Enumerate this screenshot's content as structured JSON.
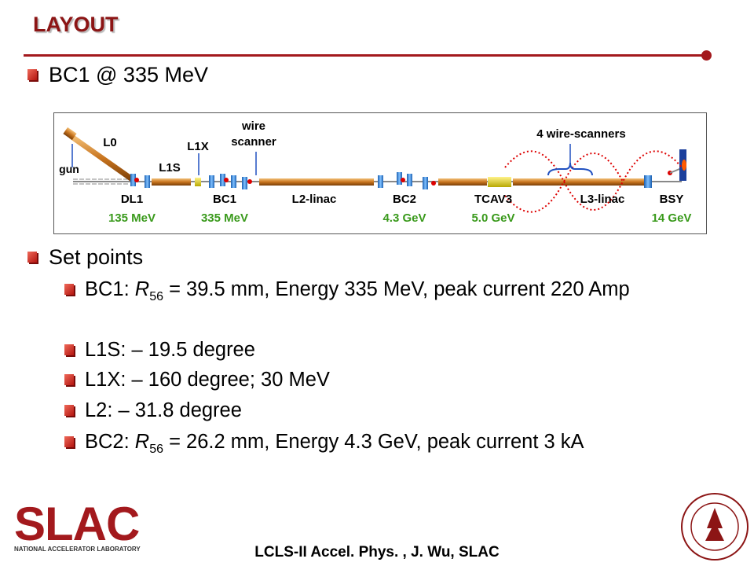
{
  "header": {
    "title": "LAYOUT"
  },
  "body": {
    "bullets": [
      {
        "text": "BC1 @ 335 MeV"
      },
      {
        "text": "Set points",
        "items": [
          {
            "label": "BC1: ",
            "symbol": "R",
            "subscript": "56",
            "text": " = 39.5 mm, Energy 335 MeV, peak current 220 Amp"
          },
          {
            "text": "L1S: – 19.5 degree"
          },
          {
            "text": "L1X: – 160 degree; 30 MeV"
          },
          {
            "text": "L2: – 31.8 degree"
          },
          {
            "label": "BC2: ",
            "symbol": "R",
            "subscript": "56",
            "text": " = 26.2 mm, Energy 4.3 GeV, peak current 3 kA"
          }
        ]
      }
    ]
  },
  "diagram": {
    "gun": "gun",
    "l0": "L0",
    "l1s": "L1S",
    "l1x": "L1X",
    "wire_scanner": [
      "wire",
      "scanner"
    ],
    "wire_scanners": "4 wire-scanners",
    "sections": [
      {
        "name": "DL1",
        "energy": "135 MeV"
      },
      {
        "name": "BC1",
        "energy": "335 MeV"
      },
      {
        "name": "L2-linac"
      },
      {
        "name": "BC2",
        "energy": "4.3 GeV"
      },
      {
        "name": "TCAV3",
        "energy": "5.0 GeV"
      },
      {
        "name": "L3-linac"
      },
      {
        "name": "BSY",
        "energy": "14 GeV"
      }
    ]
  },
  "footer": {
    "logo": "SLAC",
    "lab": "NATIONAL ACCELERATOR LABORATORY",
    "text": "LCLS-II Accel. Phys. , J. Wu, SLAC"
  }
}
